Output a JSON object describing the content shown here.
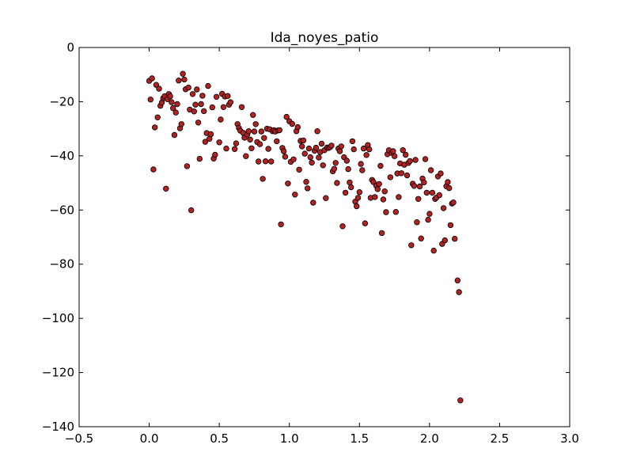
{
  "chart_data": {
    "type": "scatter",
    "title": "Ida_noyes_patio",
    "xlabel": "",
    "ylabel": "",
    "xlim": [
      -0.5,
      3.0
    ],
    "ylim": [
      -140,
      0
    ],
    "xticks": [
      -0.5,
      0.0,
      0.5,
      1.0,
      1.5,
      2.0,
      2.5,
      3.0
    ],
    "xtick_labels": [
      "−0.5",
      "0.0",
      "0.5",
      "1.0",
      "1.5",
      "2.0",
      "2.5",
      "3.0"
    ],
    "yticks": [
      0,
      -20,
      -40,
      -60,
      -80,
      -100,
      -120,
      -140
    ],
    "ytick_labels": [
      "0",
      "−20",
      "−40",
      "−60",
      "−80",
      "−100",
      "−120",
      "−140"
    ],
    "grid": false,
    "legend": "none",
    "marker_color": "#b22222",
    "marker_edge_color": "#000000",
    "points": [
      [
        0.0,
        -12.3
      ],
      [
        0.01,
        -19.2
      ],
      [
        0.02,
        -11.4
      ],
      [
        0.03,
        -45.0
      ],
      [
        0.04,
        -29.5
      ],
      [
        0.05,
        -13.8
      ],
      [
        0.06,
        -25.8
      ],
      [
        0.07,
        -15.2
      ],
      [
        0.08,
        -21.5
      ],
      [
        0.09,
        -20.3
      ],
      [
        0.1,
        -18.7
      ],
      [
        0.11,
        -18.0
      ],
      [
        0.12,
        -52.1
      ],
      [
        0.13,
        -19.1
      ],
      [
        0.14,
        -17.2
      ],
      [
        0.15,
        -18.0
      ],
      [
        0.16,
        -20.2
      ],
      [
        0.17,
        -22.4
      ],
      [
        0.18,
        -32.3
      ],
      [
        0.19,
        -24.0
      ],
      [
        0.2,
        -20.9
      ],
      [
        0.21,
        -12.2
      ],
      [
        0.22,
        -29.8
      ],
      [
        0.23,
        -28.3
      ],
      [
        0.24,
        -9.7
      ],
      [
        0.25,
        -11.8
      ],
      [
        0.26,
        -15.4
      ],
      [
        0.27,
        -43.8
      ],
      [
        0.28,
        -14.8
      ],
      [
        0.29,
        -22.9
      ],
      [
        0.3,
        -60.1
      ],
      [
        0.31,
        -17.2
      ],
      [
        0.32,
        -23.6
      ],
      [
        0.33,
        -21.1
      ],
      [
        0.34,
        -15.5
      ],
      [
        0.35,
        -27.7
      ],
      [
        0.36,
        -41.1
      ],
      [
        0.37,
        -20.9
      ],
      [
        0.38,
        -17.8
      ],
      [
        0.39,
        -23.5
      ],
      [
        0.4,
        -34.8
      ],
      [
        0.41,
        -31.6
      ],
      [
        0.42,
        -14.2
      ],
      [
        0.43,
        -33.7
      ],
      [
        0.44,
        -32.0
      ],
      [
        0.45,
        -22.1
      ],
      [
        0.46,
        -41.0
      ],
      [
        0.47,
        -39.6
      ],
      [
        0.48,
        -18.2
      ],
      [
        0.5,
        -35.0
      ],
      [
        0.51,
        -26.6
      ],
      [
        0.52,
        -17.1
      ],
      [
        0.53,
        -22.0
      ],
      [
        0.54,
        -18.1
      ],
      [
        0.55,
        -37.3
      ],
      [
        0.56,
        -17.9
      ],
      [
        0.57,
        -21.1
      ],
      [
        0.58,
        -20.2
      ],
      [
        0.61,
        -37.5
      ],
      [
        0.62,
        -35.4
      ],
      [
        0.63,
        -28.3
      ],
      [
        0.64,
        -29.7
      ],
      [
        0.65,
        -30.7
      ],
      [
        0.66,
        -22.0
      ],
      [
        0.67,
        -31.5
      ],
      [
        0.68,
        -33.3
      ],
      [
        0.69,
        -40.1
      ],
      [
        0.7,
        -32.1
      ],
      [
        0.71,
        -30.9
      ],
      [
        0.72,
        -34.0
      ],
      [
        0.73,
        -37.2
      ],
      [
        0.74,
        -24.9
      ],
      [
        0.75,
        -31.0
      ],
      [
        0.76,
        -28.3
      ],
      [
        0.77,
        -34.9
      ],
      [
        0.78,
        -42.1
      ],
      [
        0.79,
        -35.7
      ],
      [
        0.8,
        -31.0
      ],
      [
        0.81,
        -48.5
      ],
      [
        0.82,
        -33.4
      ],
      [
        0.83,
        -42.0
      ],
      [
        0.84,
        -30.0
      ],
      [
        0.85,
        -37.4
      ],
      [
        0.86,
        -30.2
      ],
      [
        0.87,
        -42.1
      ],
      [
        0.88,
        -30.9
      ],
      [
        0.89,
        -30.5
      ],
      [
        0.9,
        -31.0
      ],
      [
        0.91,
        -34.6
      ],
      [
        0.92,
        -30.6
      ],
      [
        0.93,
        -30.5
      ],
      [
        0.94,
        -65.3
      ],
      [
        0.95,
        -37.1
      ],
      [
        0.96,
        -38.3
      ],
      [
        0.97,
        -40.3
      ],
      [
        0.98,
        -25.6
      ],
      [
        0.99,
        -50.2
      ],
      [
        1.0,
        -27.2
      ],
      [
        1.01,
        -42.2
      ],
      [
        1.02,
        -28.2
      ],
      [
        1.03,
        -41.3
      ],
      [
        1.04,
        -54.3
      ],
      [
        1.05,
        -30.9
      ],
      [
        1.06,
        -29.4
      ],
      [
        1.07,
        -45.1
      ],
      [
        1.08,
        -34.5
      ],
      [
        1.09,
        -36.5
      ],
      [
        1.1,
        -34.3
      ],
      [
        1.11,
        -39.2
      ],
      [
        1.12,
        -49.6
      ],
      [
        1.13,
        -52.0
      ],
      [
        1.14,
        -37.3
      ],
      [
        1.15,
        -40.5
      ],
      [
        1.16,
        -42.5
      ],
      [
        1.17,
        -57.3
      ],
      [
        1.18,
        -38.1
      ],
      [
        1.19,
        -37.0
      ],
      [
        1.2,
        -30.9
      ],
      [
        1.21,
        -40.6
      ],
      [
        1.22,
        -38.6
      ],
      [
        1.23,
        -35.5
      ],
      [
        1.24,
        -43.5
      ],
      [
        1.25,
        -37.9
      ],
      [
        1.26,
        -55.6
      ],
      [
        1.27,
        -36.9
      ],
      [
        1.28,
        -37.1
      ],
      [
        1.29,
        -36.8
      ],
      [
        1.3,
        -36.2
      ],
      [
        1.31,
        -45.7
      ],
      [
        1.32,
        -44.8
      ],
      [
        1.33,
        -42.6
      ],
      [
        1.34,
        -50.0
      ],
      [
        1.35,
        -37.3
      ],
      [
        1.36,
        -38.3
      ],
      [
        1.37,
        -36.5
      ],
      [
        1.38,
        -66.0
      ],
      [
        1.39,
        -40.5
      ],
      [
        1.4,
        -53.6
      ],
      [
        1.41,
        -41.8
      ],
      [
        1.42,
        -44.9
      ],
      [
        1.43,
        -49.8
      ],
      [
        1.44,
        -51.6
      ],
      [
        1.45,
        -34.6
      ],
      [
        1.46,
        -37.6
      ],
      [
        1.47,
        -56.9
      ],
      [
        1.48,
        -58.6
      ],
      [
        1.49,
        -55.5
      ],
      [
        1.5,
        -53.4
      ],
      [
        1.51,
        -43.0
      ],
      [
        1.52,
        -45.3
      ],
      [
        1.53,
        -37.3
      ],
      [
        1.54,
        -64.9
      ],
      [
        1.55,
        -39.7
      ],
      [
        1.56,
        -36.0
      ],
      [
        1.57,
        -37.6
      ],
      [
        1.58,
        -55.5
      ],
      [
        1.59,
        -48.9
      ],
      [
        1.6,
        -49.7
      ],
      [
        1.61,
        -55.2
      ],
      [
        1.62,
        -51.0
      ],
      [
        1.63,
        -52.3
      ],
      [
        1.64,
        -50.4
      ],
      [
        1.65,
        -43.7
      ],
      [
        1.66,
        -68.5
      ],
      [
        1.67,
        -56.1
      ],
      [
        1.68,
        -53.1
      ],
      [
        1.69,
        -60.8
      ],
      [
        1.7,
        -39.4
      ],
      [
        1.71,
        -37.9
      ],
      [
        1.72,
        -47.9
      ],
      [
        1.73,
        -38.9
      ],
      [
        1.74,
        -38.3
      ],
      [
        1.75,
        -40.1
      ],
      [
        1.76,
        -60.7
      ],
      [
        1.77,
        -46.5
      ],
      [
        1.78,
        -55.2
      ],
      [
        1.79,
        -42.8
      ],
      [
        1.8,
        -46.4
      ],
      [
        1.81,
        -37.9
      ],
      [
        1.82,
        -43.3
      ],
      [
        1.83,
        -39.6
      ],
      [
        1.84,
        -47.2
      ],
      [
        1.85,
        -42.6
      ],
      [
        1.86,
        -41.9
      ],
      [
        1.87,
        -73.0
      ],
      [
        1.88,
        -50.3
      ],
      [
        1.89,
        -51.1
      ],
      [
        1.9,
        -41.5
      ],
      [
        1.91,
        -64.5
      ],
      [
        1.92,
        -55.9
      ],
      [
        1.93,
        -51.3
      ],
      [
        1.94,
        -70.5
      ],
      [
        1.95,
        -48.4
      ],
      [
        1.96,
        -49.8
      ],
      [
        1.97,
        -41.2
      ],
      [
        1.98,
        -53.6
      ],
      [
        1.99,
        -63.6
      ],
      [
        2.0,
        -61.4
      ],
      [
        2.01,
        -45.3
      ],
      [
        2.02,
        -53.6
      ],
      [
        2.03,
        -75.0
      ],
      [
        2.04,
        -55.9
      ],
      [
        2.05,
        -55.4
      ],
      [
        2.06,
        -47.6
      ],
      [
        2.07,
        -54.5
      ],
      [
        2.08,
        -46.5
      ],
      [
        2.09,
        -72.5
      ],
      [
        2.1,
        -59.3
      ],
      [
        2.11,
        -71.2
      ],
      [
        2.12,
        -51.2
      ],
      [
        2.13,
        -49.7
      ],
      [
        2.14,
        -51.9
      ],
      [
        2.15,
        -65.6
      ],
      [
        2.16,
        -57.6
      ],
      [
        2.17,
        -57.2
      ],
      [
        2.18,
        -70.6
      ],
      [
        2.2,
        -86.0
      ],
      [
        2.21,
        -90.3
      ],
      [
        2.22,
        -130.3
      ]
    ]
  }
}
